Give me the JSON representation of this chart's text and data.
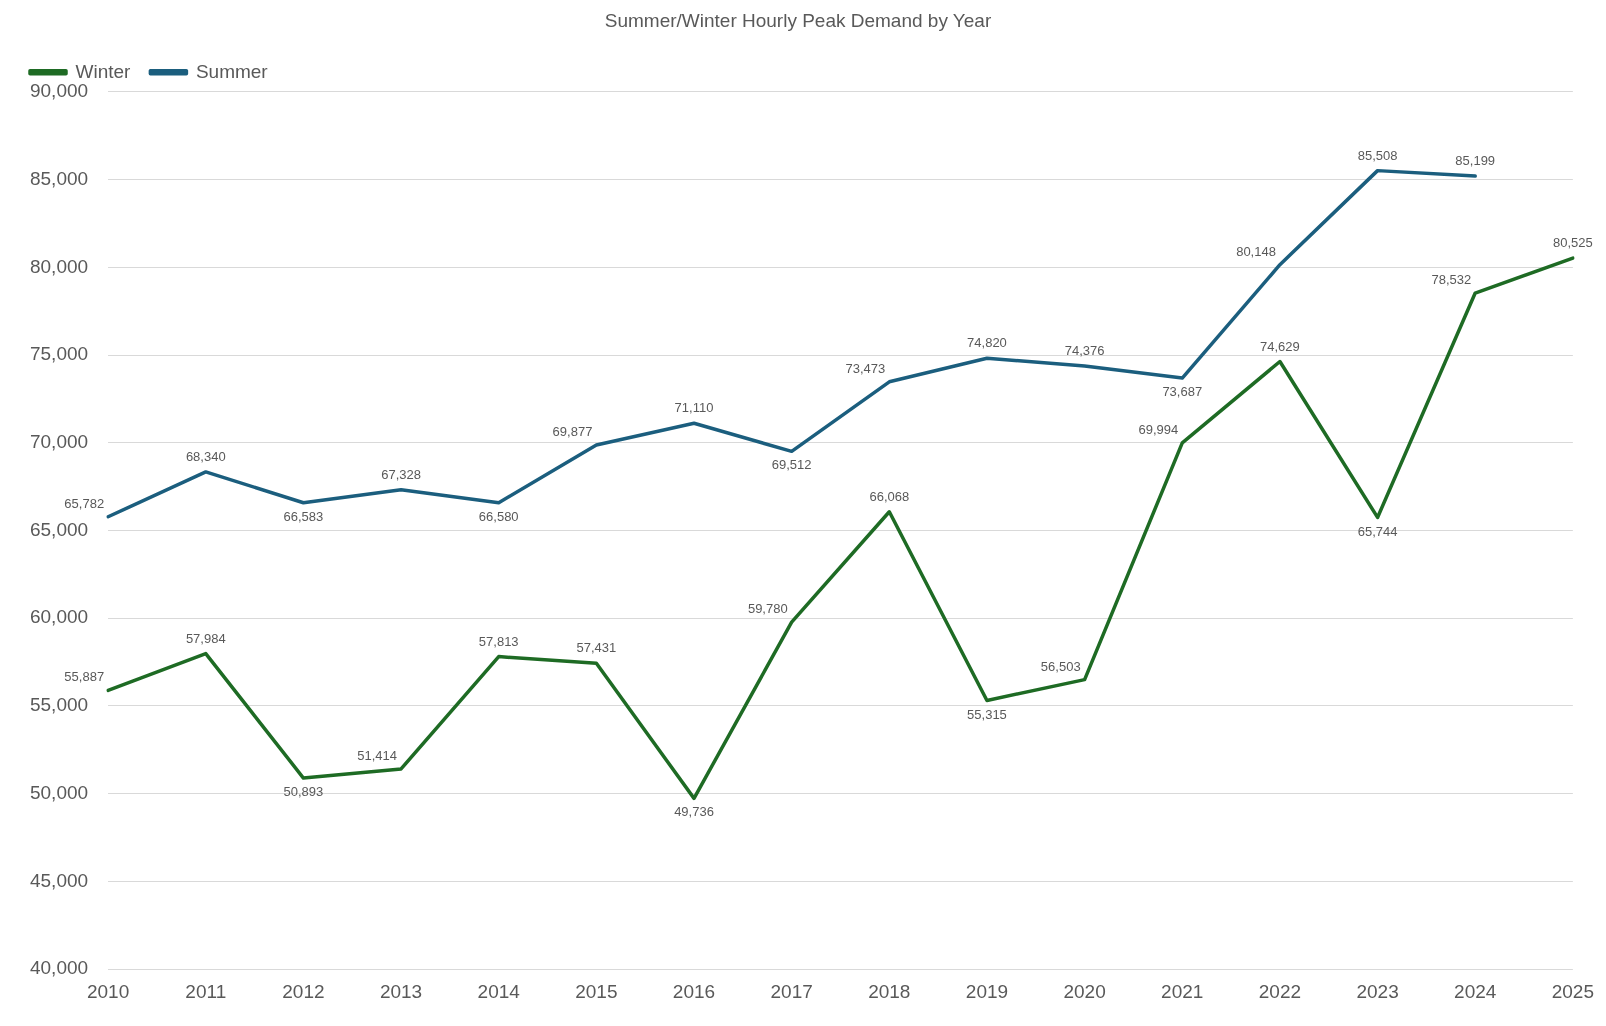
{
  "chart_data": {
    "type": "line",
    "title": "Summer/Winter Hourly Peak Demand by Year",
    "categories": [
      "2010",
      "2011",
      "2012",
      "2013",
      "2014",
      "2015",
      "2016",
      "2017",
      "2018",
      "2019",
      "2020",
      "2021",
      "2022",
      "2023",
      "2024",
      "2025"
    ],
    "series": [
      {
        "name": "Winter",
        "color": "#1e6b24",
        "values": [
          55887,
          57984,
          50893,
          51414,
          57813,
          57431,
          49736,
          59780,
          66068,
          55315,
          56503,
          69994,
          74629,
          65744,
          78532,
          80525
        ],
        "value_labels": [
          "55,887",
          "57,984",
          "50,893",
          "51,414",
          "57,813",
          "57,431",
          "49,736",
          "59,780",
          "66,068",
          "55,315",
          "56,503",
          "69,994",
          "74,629",
          "65,744",
          "78,532",
          "80,525"
        ]
      },
      {
        "name": "Summer",
        "color": "#1b5e7e",
        "values": [
          65782,
          68340,
          66583,
          67328,
          66580,
          69877,
          71110,
          69512,
          73473,
          74820,
          74376,
          73687,
          80148,
          85508,
          85199,
          null
        ],
        "value_labels": [
          "65,782",
          "68,340",
          "66,583",
          "67,328",
          "66,580",
          "69,877",
          "71,110",
          "69,512",
          "73,473",
          "74,820",
          "74,376",
          "73,687",
          "80,148",
          "85,508",
          "85,199",
          null
        ]
      }
    ],
    "ylim": [
      40000,
      90000
    ],
    "yticks": [
      {
        "value": 40000,
        "label": "40,000"
      },
      {
        "value": 45000,
        "label": "45,000"
      },
      {
        "value": 50000,
        "label": "50,000"
      },
      {
        "value": 55000,
        "label": "55,000"
      },
      {
        "value": 60000,
        "label": "60,000"
      },
      {
        "value": 65000,
        "label": "65,000"
      },
      {
        "value": 70000,
        "label": "70,000"
      },
      {
        "value": 75000,
        "label": "75,000"
      },
      {
        "value": 80000,
        "label": "80,000"
      },
      {
        "value": 85000,
        "label": "85,000"
      },
      {
        "value": 90000,
        "label": "90,000"
      }
    ],
    "grid": "y",
    "legend": "top left",
    "marker": "none",
    "line_style": "solid"
  }
}
